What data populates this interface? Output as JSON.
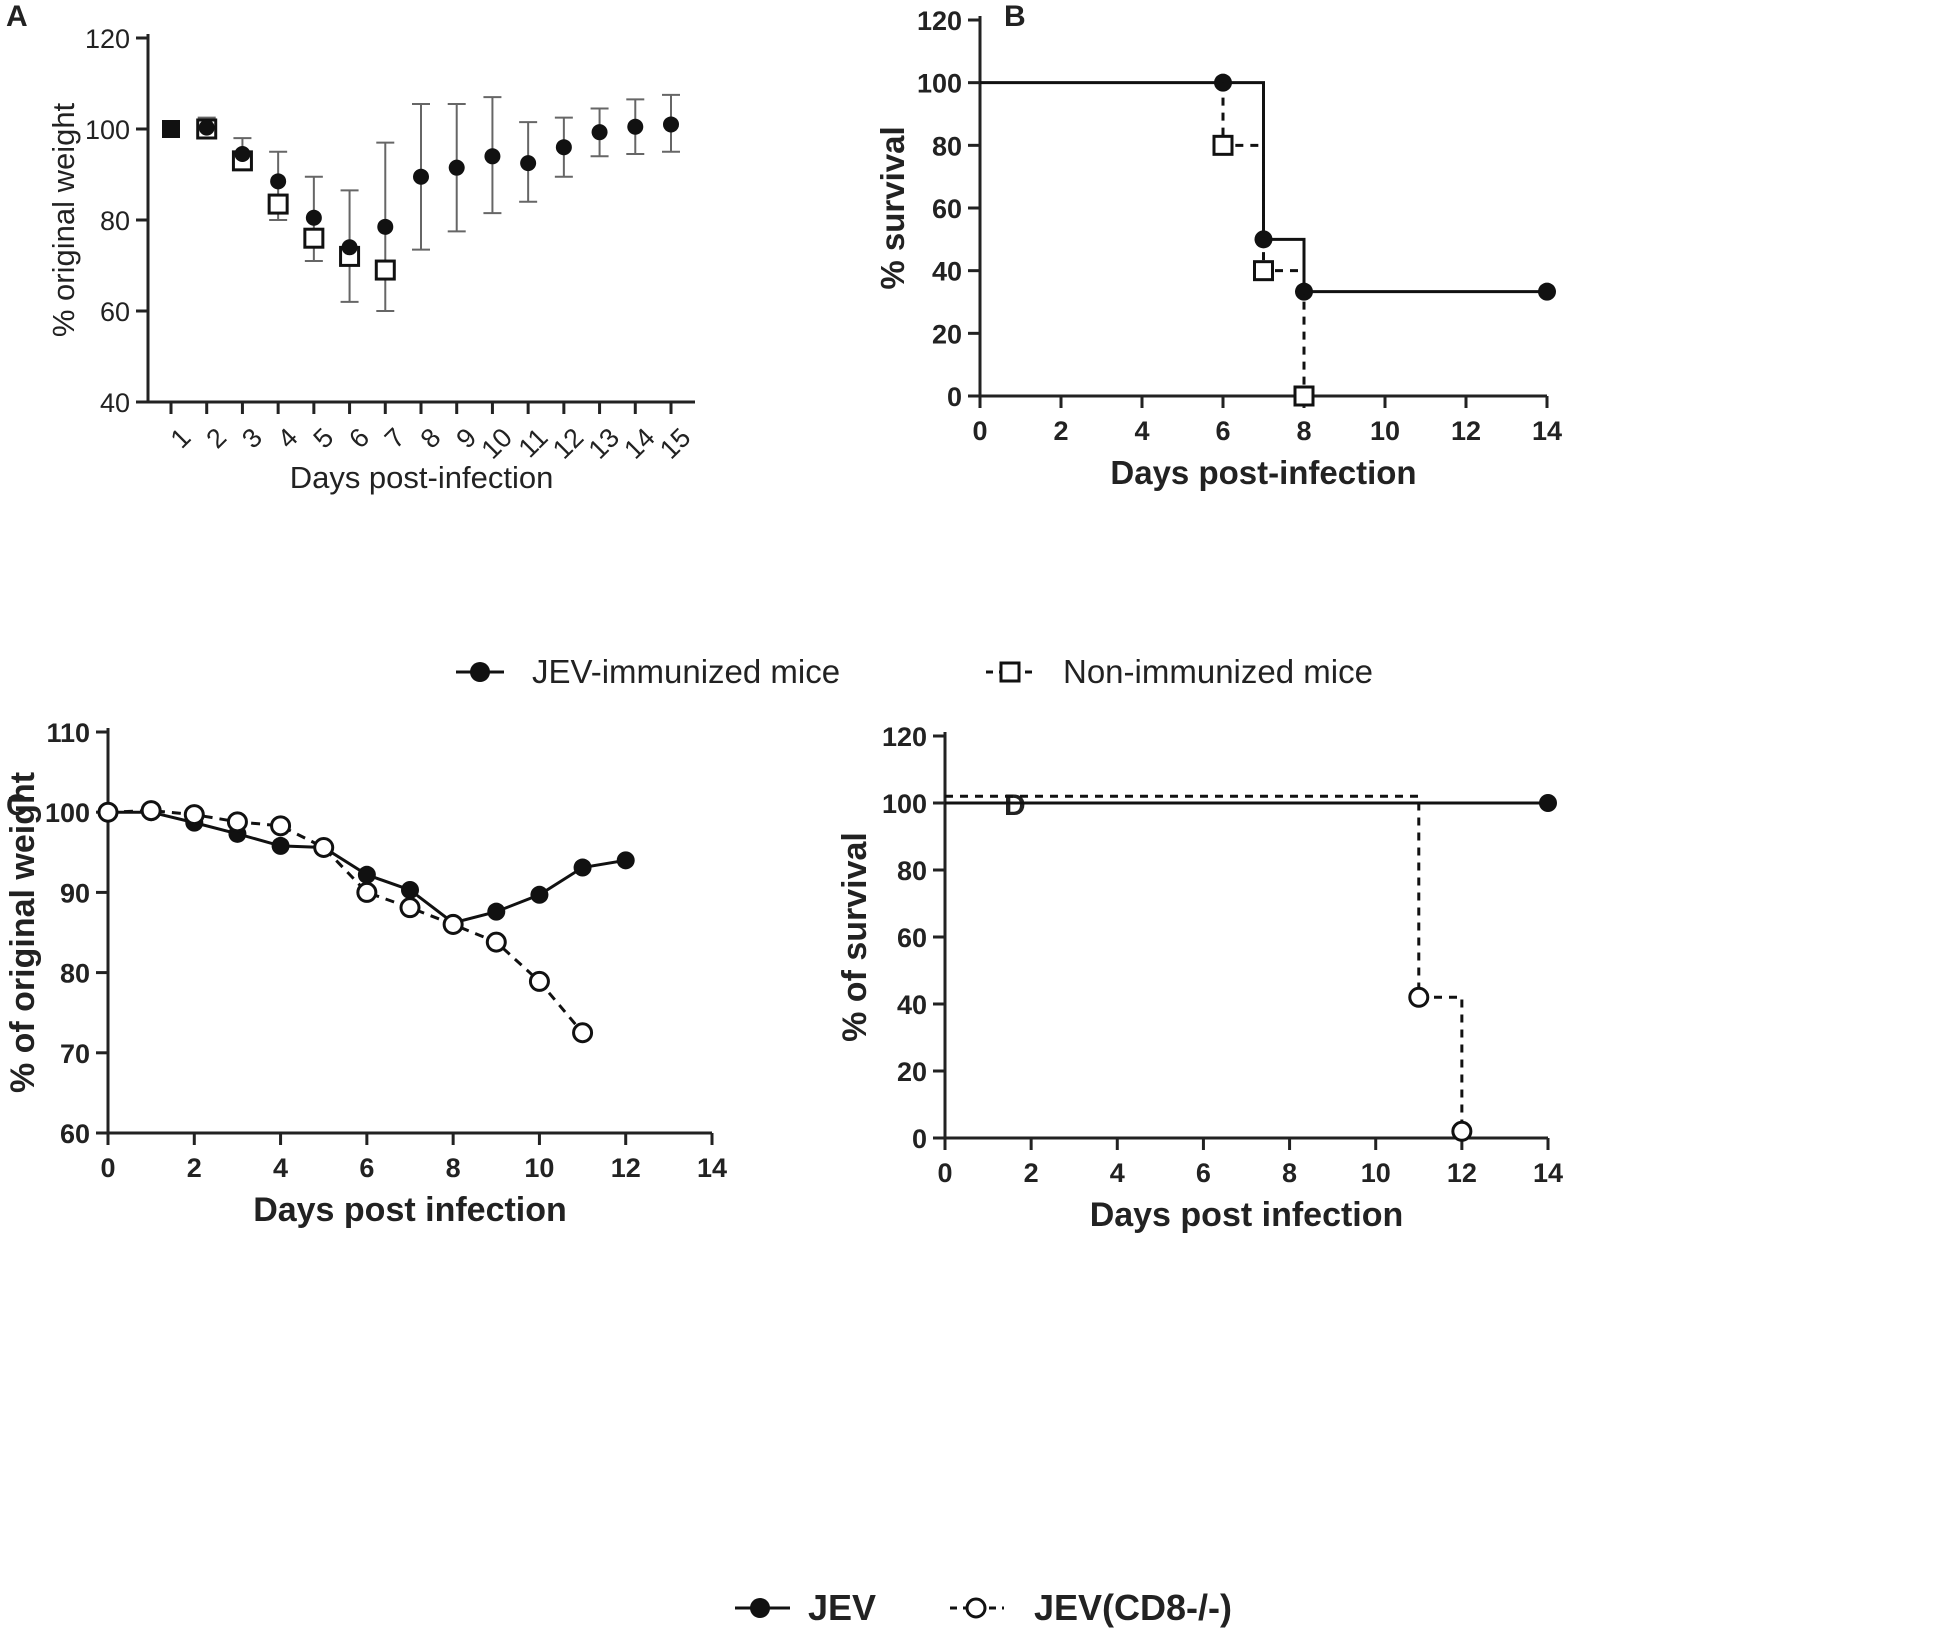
{
  "panels": {
    "A": "A",
    "B": "B",
    "C": "C",
    "D": "D"
  },
  "legend_top": {
    "items": [
      {
        "label": "JEV-immunized mice",
        "marker": "filled-circle",
        "line": "solid"
      },
      {
        "label": "Non-immunized mice",
        "marker": "open-square",
        "line": "dashed"
      }
    ]
  },
  "legend_bottom": {
    "items": [
      {
        "label": "JEV",
        "marker": "filled-circle",
        "line": "solid"
      },
      {
        "label": "JEV(CD8-/-)",
        "marker": "open-circle",
        "line": "dashed"
      }
    ]
  },
  "colors": {
    "ink": "#111111",
    "axis": "#222222",
    "errorbar": "#666666",
    "background": "#ffffff"
  },
  "chart_data": [
    {
      "panel": "A",
      "type": "scatter",
      "title": "",
      "xlabel": "Days post-infection",
      "ylabel": "% original weight",
      "ylim": [
        40,
        120
      ],
      "yticks": [
        40,
        60,
        80,
        100,
        120
      ],
      "categories": [
        "1",
        "2",
        "3",
        "4",
        "5",
        "6",
        "7",
        "8",
        "9",
        "10",
        "11",
        "12",
        "13",
        "14",
        "15"
      ],
      "series": [
        {
          "name": "JEV-immunized mice",
          "marker": "filled-circle",
          "x": [
            1,
            2,
            3,
            4,
            5,
            6,
            7,
            8,
            9,
            10,
            11,
            12,
            13,
            14,
            15
          ],
          "values": [
            100,
            100.3,
            94.5,
            88.5,
            80.5,
            74,
            78.5,
            89.5,
            91.5,
            94,
            92.5,
            96,
            99.3,
            100.5,
            101
          ],
          "err_low": [
            100,
            98,
            91,
            80,
            71,
            62,
            60,
            73.5,
            77.5,
            81.5,
            84,
            89.5,
            94,
            94.5,
            95
          ],
          "err_high": [
            100,
            102.5,
            98,
            95,
            89.5,
            86.5,
            97,
            105.5,
            105.5,
            107,
            101.5,
            102.5,
            104.5,
            106.5,
            107.5
          ]
        },
        {
          "name": "Non-immunized mice",
          "marker": "open-square",
          "x": [
            1,
            2,
            3,
            4,
            5,
            6,
            7
          ],
          "values": [
            100,
            100,
            93,
            83.5,
            76,
            72,
            69
          ],
          "err_low": null,
          "err_high": null
        }
      ]
    },
    {
      "panel": "B",
      "type": "line",
      "subtype": "survival-step",
      "title": "",
      "xlabel": "Days post-infection",
      "ylabel": "% survival",
      "xlim": [
        0,
        14
      ],
      "ylim": [
        0,
        120
      ],
      "xticks": [
        0,
        2,
        4,
        6,
        8,
        10,
        12,
        14
      ],
      "yticks": [
        0,
        20,
        40,
        60,
        80,
        100,
        120
      ],
      "series": [
        {
          "name": "JEV-immunized mice",
          "line": "solid",
          "marker": "filled-circle",
          "step_x": [
            0,
            7,
            8,
            14
          ],
          "step_y": [
            100,
            50,
            33.3,
            33.3
          ],
          "markers_x": [
            6,
            7,
            8,
            14
          ],
          "markers_y": [
            100,
            50,
            33.3,
            33.3
          ]
        },
        {
          "name": "Non-immunized mice",
          "line": "dashed",
          "marker": "open-square",
          "step_x": [
            6,
            7,
            8
          ],
          "step_y": [
            80,
            40,
            0
          ],
          "start_y": 100,
          "markers_x": [
            6,
            7,
            8
          ],
          "markers_y": [
            80,
            40,
            0
          ]
        }
      ]
    },
    {
      "panel": "C",
      "type": "line",
      "title": "",
      "xlabel": "Days post infection",
      "ylabel": "% of original weight",
      "xlim": [
        0,
        14
      ],
      "ylim": [
        60,
        110
      ],
      "xticks": [
        0,
        2,
        4,
        6,
        8,
        10,
        12,
        14
      ],
      "yticks": [
        60,
        70,
        80,
        90,
        100,
        110
      ],
      "series": [
        {
          "name": "JEV",
          "line": "solid",
          "marker": "filled-circle",
          "x": [
            0,
            1,
            2,
            3,
            4,
            5,
            6,
            7,
            8,
            9,
            10,
            11,
            12
          ],
          "values": [
            100,
            100,
            98.7,
            97.3,
            95.8,
            95.6,
            92.2,
            90.3,
            86.2,
            87.6,
            89.7,
            93.1,
            94
          ]
        },
        {
          "name": "JEV(CD8-/-)",
          "line": "dashed",
          "marker": "open-circle",
          "x": [
            0,
            1,
            2,
            3,
            4,
            5,
            6,
            7,
            8,
            9,
            10,
            11
          ],
          "values": [
            100,
            100.2,
            99.7,
            98.8,
            98.3,
            95.6,
            90,
            88.1,
            86,
            83.8,
            78.9,
            72.5
          ]
        }
      ]
    },
    {
      "panel": "D",
      "type": "line",
      "subtype": "survival-step",
      "title": "",
      "xlabel": "Days post infection",
      "ylabel": "% of survival",
      "xlim": [
        0,
        14
      ],
      "ylim": [
        0,
        120
      ],
      "xticks": [
        0,
        2,
        4,
        6,
        8,
        10,
        12,
        14
      ],
      "yticks": [
        0,
        20,
        40,
        60,
        80,
        100,
        120
      ],
      "series": [
        {
          "name": "JEV",
          "line": "solid",
          "marker": "filled-circle",
          "step_x": [
            0,
            14
          ],
          "step_y": [
            100,
            100
          ],
          "markers_x": [
            14
          ],
          "markers_y": [
            100
          ]
        },
        {
          "name": "JEV(CD8-/-)",
          "line": "dashed",
          "marker": "open-circle",
          "step_x": [
            0,
            11,
            12
          ],
          "step_y": [
            102,
            42,
            2
          ],
          "markers_x": [
            11,
            12
          ],
          "markers_y": [
            42,
            2
          ]
        }
      ]
    }
  ]
}
